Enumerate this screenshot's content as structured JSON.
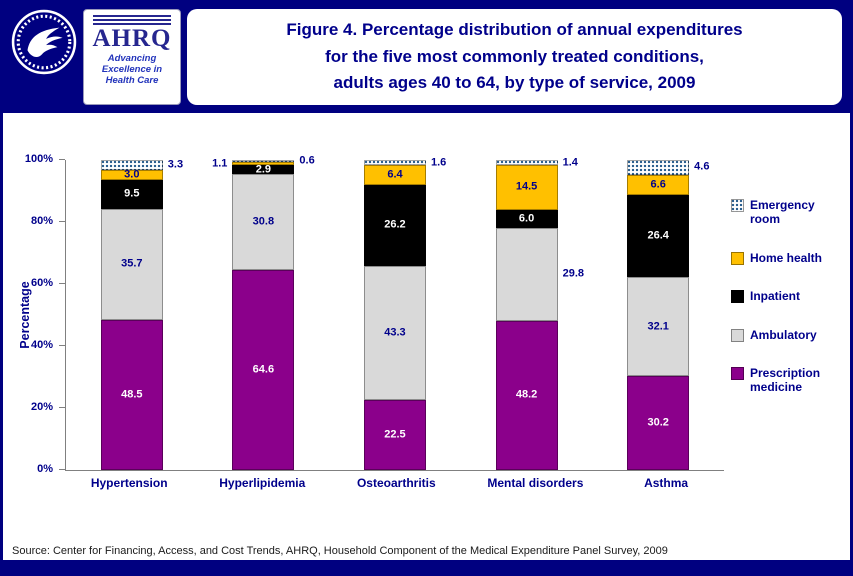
{
  "header": {
    "title_lines": [
      "Figure 4. Percentage distribution of annual expenditures",
      "for the five most commonly treated conditions,",
      "adults ages 40 to 64, by type of service, 2009"
    ],
    "ahrq_logo": {
      "acronym": "AHRQ",
      "tagline_lines": [
        "Advancing",
        "Excellence in",
        "Health Care"
      ]
    }
  },
  "chart_data": {
    "type": "bar",
    "subtype": "stacked-100-percent",
    "title": "Figure 4. Percentage distribution of annual expenditures for the five most commonly treated conditions, adults ages 40 to 64, by type of service, 2009",
    "ylabel": "Percentage",
    "ylim": [
      0,
      100
    ],
    "yticks": [
      "0%",
      "20%",
      "40%",
      "60%",
      "80%",
      "100%"
    ],
    "grid": false,
    "legend_position": "right",
    "categories": [
      "Hypertension",
      "Hyperlipidemia",
      "Osteoarthritis",
      "Mental disorders",
      "Asthma"
    ],
    "outside_label_color": "#00008B",
    "series": [
      {
        "name": "Prescription medicine",
        "color": "#8B008B",
        "label_color": "#FFFFFF",
        "values": [
          48.5,
          64.6,
          22.5,
          48.2,
          30.2
        ],
        "label_positions": [
          "in",
          "in",
          "in",
          "in",
          "in"
        ]
      },
      {
        "name": "Ambulatory",
        "color": "#D9D9D9",
        "label_color": "#00008B",
        "values": [
          35.7,
          30.8,
          43.3,
          29.8,
          32.1
        ],
        "label_positions": [
          "in",
          "in",
          "in",
          "right",
          "in"
        ]
      },
      {
        "name": "Inpatient",
        "color": "#000000",
        "label_color": "#FFFFFF",
        "values": [
          9.5,
          2.9,
          26.2,
          6.0,
          26.4
        ],
        "label_positions": [
          "in",
          "in",
          "in",
          "in",
          "in"
        ]
      },
      {
        "name": "Home health",
        "color": "#FFC000",
        "label_color": "#00008B",
        "values": [
          3.0,
          1.1,
          6.4,
          14.5,
          6.6
        ],
        "label_positions": [
          "in",
          "left",
          "in",
          "in",
          "in"
        ]
      },
      {
        "name": "Emergency room",
        "color": "#FFFFFF",
        "pattern": "dots",
        "dot_color": "#2B5F8E",
        "label_color": "#00008B",
        "values": [
          3.3,
          0.6,
          1.6,
          1.4,
          4.6
        ],
        "label_positions": [
          "right",
          "right",
          "right",
          "right",
          "right"
        ]
      }
    ],
    "legend_order_top_to_bottom": [
      "Emergency room",
      "Home health",
      "Inpatient",
      "Ambulatory",
      "Prescription medicine"
    ]
  },
  "footer": {
    "source": "Source: Center for Financing, Access, and Cost Trends, AHRQ, Household Component of the Medical Expenditure Panel Survey, 2009"
  }
}
